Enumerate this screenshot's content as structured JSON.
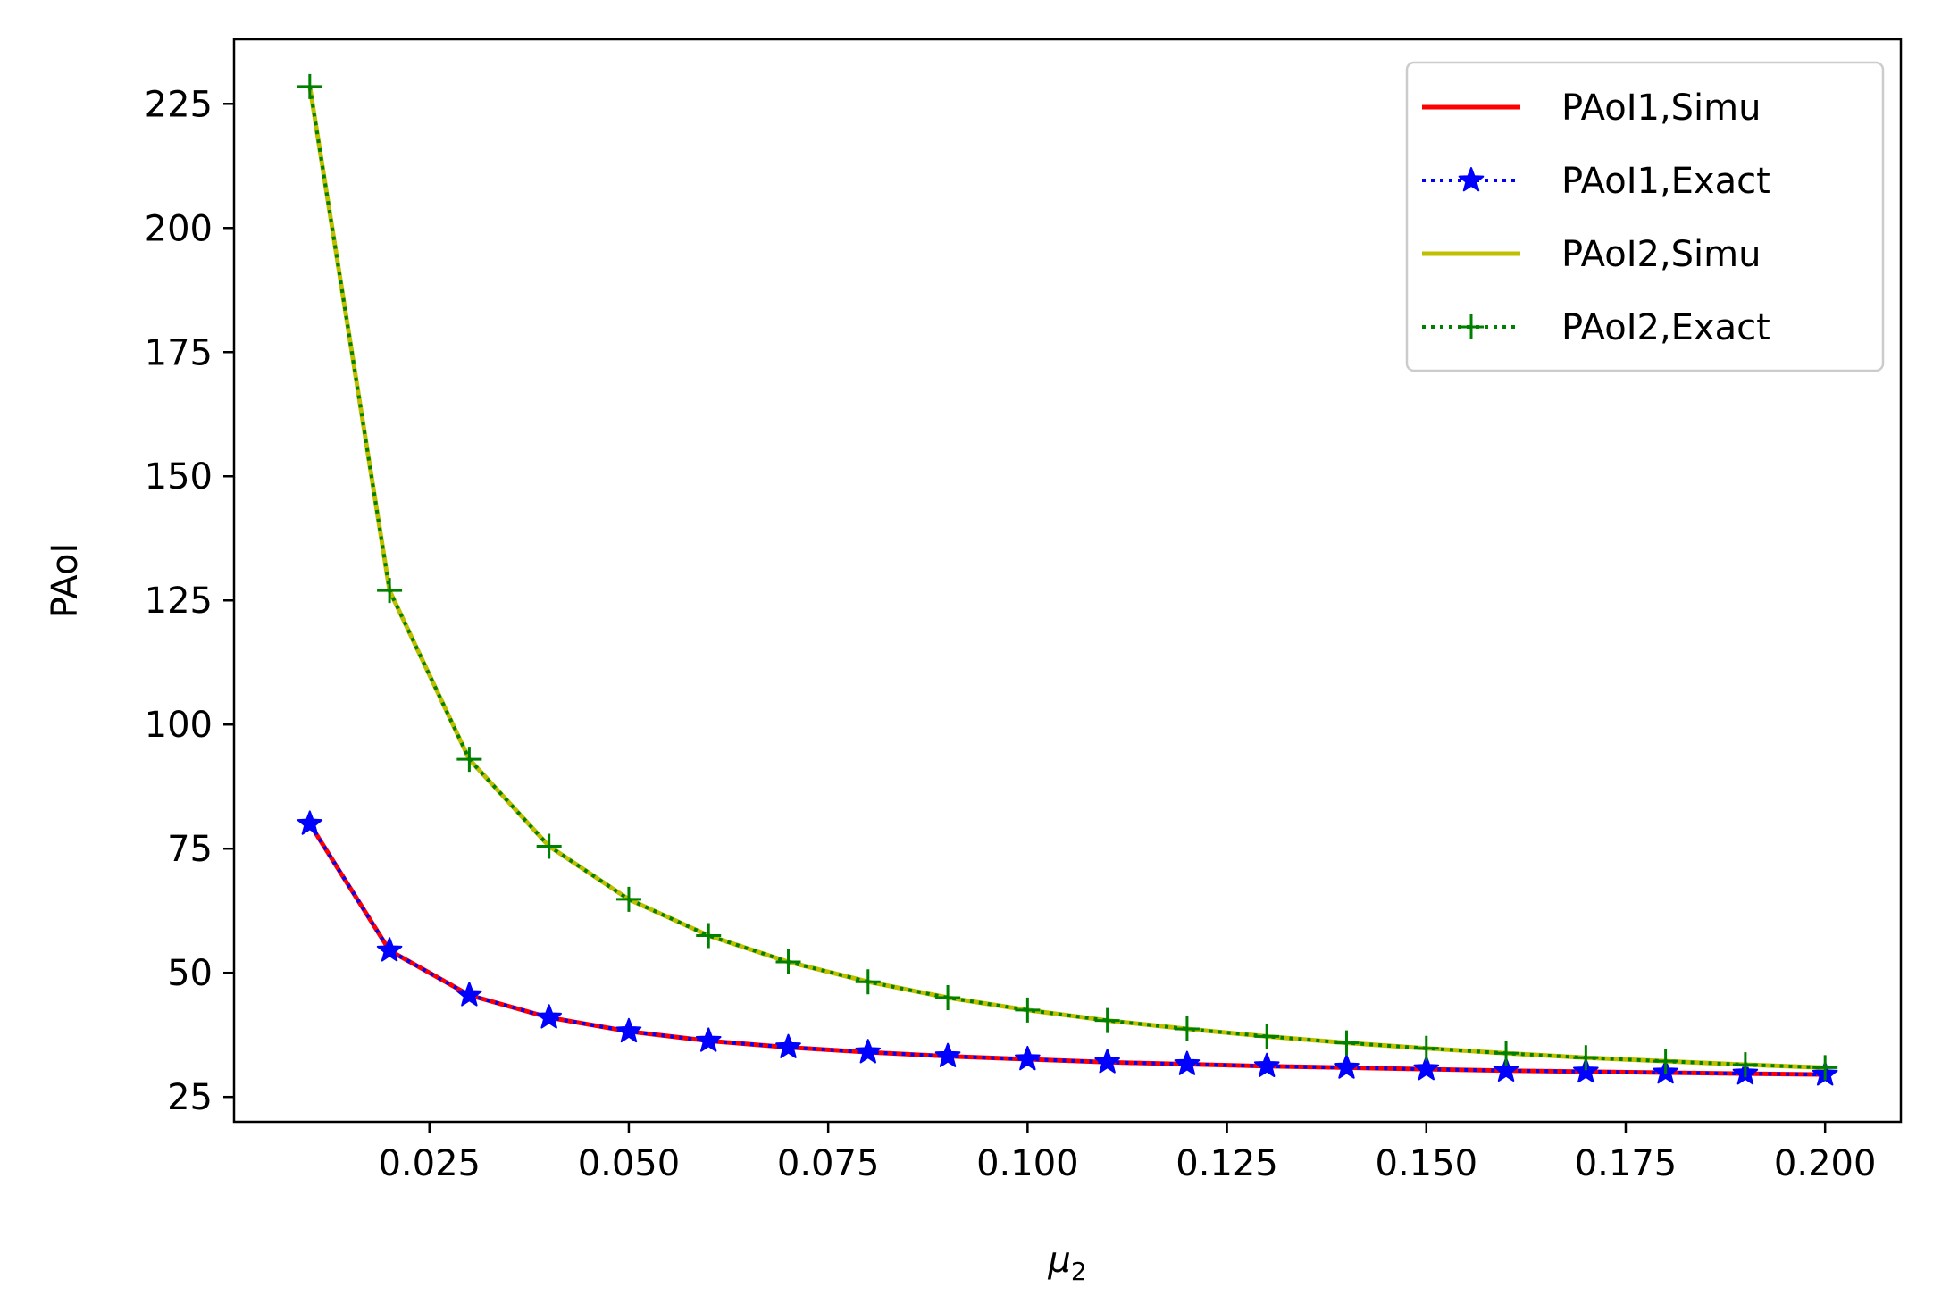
{
  "chart_data": {
    "type": "line",
    "title": "",
    "xlabel_symbol": "μ",
    "xlabel_subscript": "2",
    "ylabel": "PAoI",
    "xlim": [
      0.0005,
      0.2095
    ],
    "ylim": [
      20,
      238
    ],
    "xticks": [
      {
        "value": 0.025,
        "label": "0.025"
      },
      {
        "value": 0.05,
        "label": "0.050"
      },
      {
        "value": 0.075,
        "label": "0.075"
      },
      {
        "value": 0.1,
        "label": "0.100"
      },
      {
        "value": 0.125,
        "label": "0.125"
      },
      {
        "value": 0.15,
        "label": "0.150"
      },
      {
        "value": 0.175,
        "label": "0.175"
      },
      {
        "value": 0.2,
        "label": "0.200"
      }
    ],
    "yticks": [
      {
        "value": 25,
        "label": "25"
      },
      {
        "value": 50,
        "label": "50"
      },
      {
        "value": 75,
        "label": "75"
      },
      {
        "value": 100,
        "label": "100"
      },
      {
        "value": 125,
        "label": "125"
      },
      {
        "value": 150,
        "label": "150"
      },
      {
        "value": 175,
        "label": "175"
      },
      {
        "value": 200,
        "label": "200"
      },
      {
        "value": 225,
        "label": "225"
      }
    ],
    "grid": false,
    "legend_position": "top-right",
    "x": [
      0.01,
      0.02,
      0.03,
      0.04,
      0.05,
      0.06,
      0.07,
      0.08,
      0.09,
      0.1,
      0.11,
      0.12,
      0.13,
      0.14,
      0.15,
      0.16,
      0.17,
      0.18,
      0.19,
      0.2
    ],
    "series": [
      {
        "name": "PAoI1,Simu",
        "color": "#ff0000",
        "style": "solid",
        "marker": "none",
        "values": [
          80.0,
          54.5,
          45.5,
          41.0,
          38.2,
          36.3,
          35.0,
          34.0,
          33.2,
          32.6,
          32.0,
          31.6,
          31.2,
          30.9,
          30.6,
          30.3,
          30.1,
          29.9,
          29.7,
          29.5
        ]
      },
      {
        "name": "PAoI1,Exact",
        "color": "#0000ff",
        "style": "dotted",
        "marker": "star",
        "values": [
          80.0,
          54.5,
          45.5,
          41.0,
          38.2,
          36.3,
          35.0,
          34.0,
          33.2,
          32.6,
          32.0,
          31.6,
          31.2,
          30.9,
          30.6,
          30.3,
          30.1,
          29.9,
          29.7,
          29.5
        ]
      },
      {
        "name": "PAoI2,Simu",
        "color": "#bfbf00",
        "style": "solid",
        "marker": "none",
        "values": [
          228.5,
          127.0,
          93.0,
          75.5,
          64.8,
          57.5,
          52.2,
          48.2,
          45.0,
          42.5,
          40.4,
          38.7,
          37.2,
          35.9,
          34.8,
          33.8,
          32.9,
          32.2,
          31.5,
          30.9
        ]
      },
      {
        "name": "PAoI2,Exact",
        "color": "#008000",
        "style": "dotted",
        "marker": "plus",
        "values": [
          228.5,
          127.0,
          93.0,
          75.5,
          64.8,
          57.5,
          52.2,
          48.2,
          45.0,
          42.5,
          40.4,
          38.7,
          37.2,
          35.9,
          34.8,
          33.8,
          32.9,
          32.2,
          31.5,
          30.9
        ]
      }
    ]
  }
}
